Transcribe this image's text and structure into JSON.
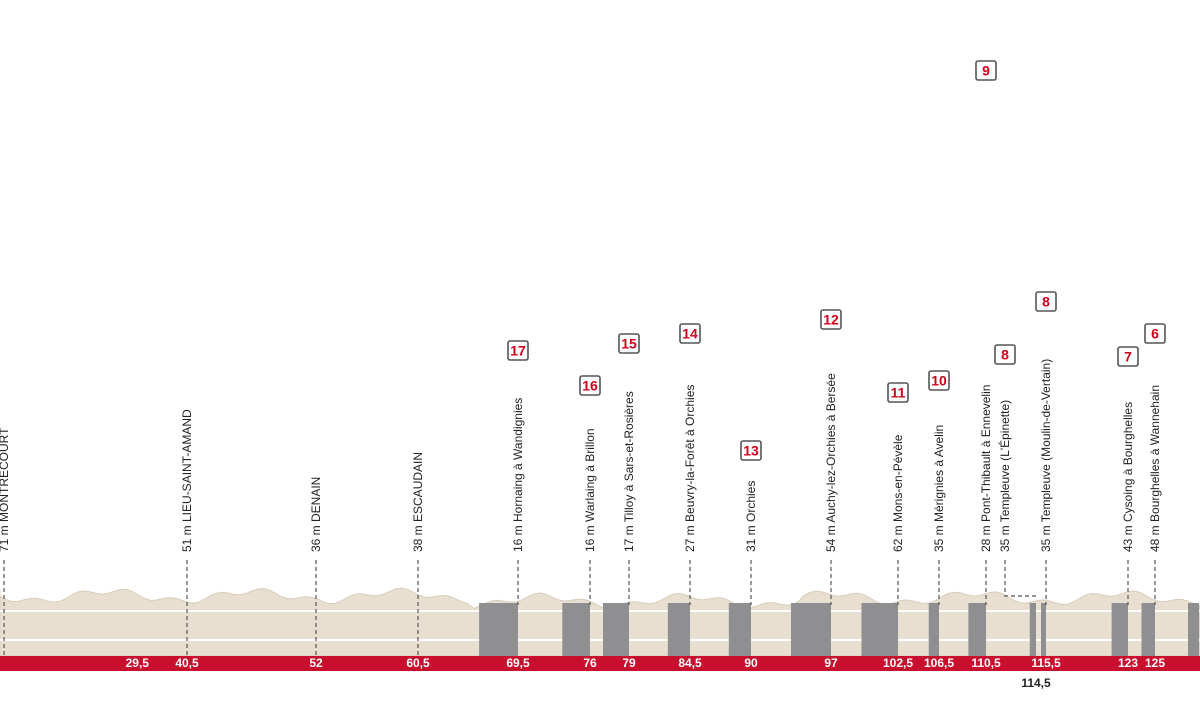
{
  "colors": {
    "terrain": "#e8dfd1",
    "terrain_edge": "#d9ccba",
    "cobbles": "#8f8f91",
    "baseline": "#c8102e",
    "sector_badge_border": "#555555",
    "sector_number": "#d0021b",
    "guideline": "#555555",
    "text": "#222222"
  },
  "chart_data": {
    "type": "area",
    "towns": [
      {
        "km": 0,
        "text": "71 m MONTRECOURT"
      },
      {
        "km": 40.5,
        "text": "51 m LIEU-SAINT-AMAND"
      },
      {
        "km": 52,
        "text": "36 m DENAIN"
      },
      {
        "km": 60.5,
        "text": "38 m ESCAUDAIN"
      }
    ],
    "sectors": [
      {
        "number": "17",
        "km": 69.5,
        "text": "16 m Hornaing à Wandignies"
      },
      {
        "number": "16",
        "km": 76,
        "text": "16 m Warlaing à Brillon"
      },
      {
        "number": "15",
        "km": 79,
        "text": "17 m Tilloy à Sars-et-Rosières"
      },
      {
        "number": "14",
        "km": 84.5,
        "text": "27 m Beuvry-la-Forêt à Orchies"
      },
      {
        "number": "13",
        "km": 90,
        "text": "31 m Orchies"
      },
      {
        "number": "12",
        "km": 97,
        "text": "54 m Auchy-lez-Orchies à Bersée"
      },
      {
        "number": "11",
        "km": 102.5,
        "text": "62 m Mons-en-Pévèle"
      },
      {
        "number": "10",
        "km": 106.5,
        "text": "35 m Mérignies à Avelin"
      },
      {
        "number": "9",
        "km": 110.5,
        "text": "28 m Pont-Thibault à Ennevelin"
      },
      {
        "number": "8",
        "km": 114.5,
        "text": "35 m Templeuve (L'Épinette)"
      },
      {
        "number": "8",
        "km": 115.5,
        "text": "35 m Templeuve (Moulin-de-Vertain)"
      },
      {
        "number": "7",
        "km": 123,
        "text": "43 m Cysoing à Bourghelles"
      },
      {
        "number": "6",
        "km": 125,
        "text": "48 m Bourghelles à Wannehain"
      }
    ],
    "km_ticks": [
      {
        "km": 29.5,
        "label": "29,5"
      },
      {
        "km": 40.5,
        "label": "40,5"
      },
      {
        "km": 52,
        "label": "52"
      },
      {
        "km": 60.5,
        "label": "60,5"
      },
      {
        "km": 69.5,
        "label": "69,5"
      },
      {
        "km": 76,
        "label": "76"
      },
      {
        "km": 79,
        "label": "79"
      },
      {
        "km": 84.5,
        "label": "84,5"
      },
      {
        "km": 90,
        "label": "90"
      },
      {
        "km": 97,
        "label": "97"
      },
      {
        "km": 102.5,
        "label": "102,5"
      },
      {
        "km": 106.5,
        "label": "106,5"
      },
      {
        "km": 110.5,
        "label": "110,5"
      },
      {
        "km": 114.5,
        "label": "114,5"
      },
      {
        "km": 115.5,
        "label": "115,5"
      },
      {
        "km": 123,
        "label": "123"
      },
      {
        "km": 125,
        "label": "125"
      }
    ],
    "cobbled_sections_km": [
      [
        66.0,
        69.5
      ],
      [
        73.5,
        76.0
      ],
      [
        77.0,
        79.0
      ],
      [
        82.5,
        84.5
      ],
      [
        88.0,
        90.0
      ],
      [
        93.5,
        97.0
      ],
      [
        99.5,
        102.5
      ],
      [
        105.5,
        106.5
      ],
      [
        109.0,
        110.5
      ],
      [
        114.0,
        114.5
      ],
      [
        115.0,
        115.5
      ],
      [
        121.5,
        123.0
      ],
      [
        124.0,
        125.0
      ],
      [
        128.0,
        129.0
      ]
    ]
  }
}
